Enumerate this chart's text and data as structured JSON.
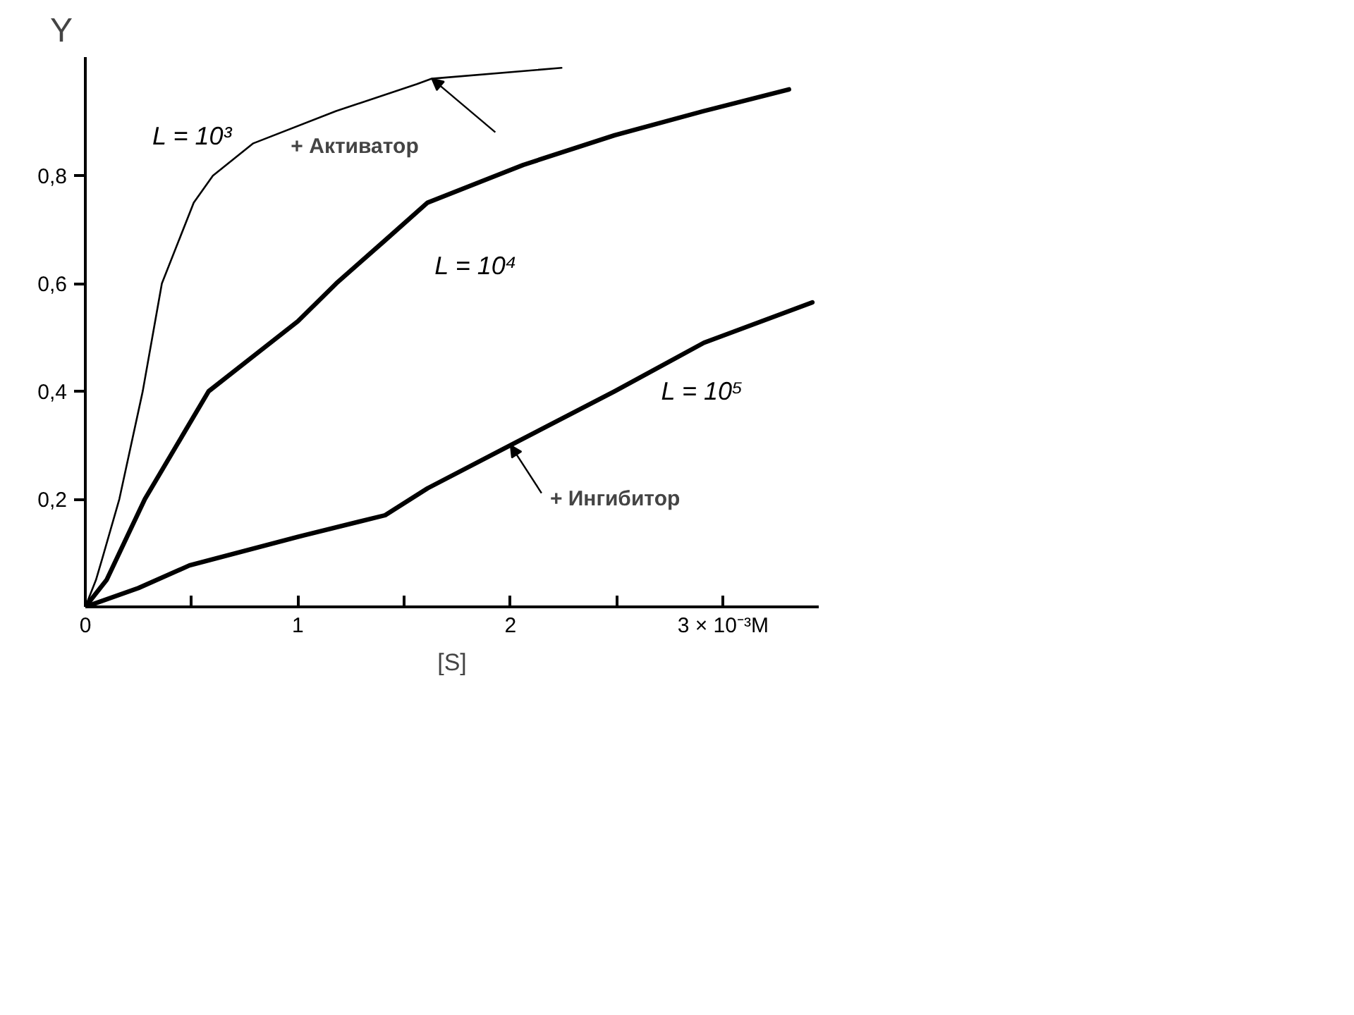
{
  "chart_data": {
    "type": "line",
    "xlabel": "[S]",
    "ylabel": "Y",
    "xlim": [
      0,
      3.45
    ],
    "ylim": [
      0,
      1.02
    ],
    "xticks": [
      {
        "value": 0,
        "label": "0"
      },
      {
        "value": 0.5,
        "label": null
      },
      {
        "value": 1,
        "label": "1"
      },
      {
        "value": 1.5,
        "label": null
      },
      {
        "value": 2,
        "label": "2"
      },
      {
        "value": 2.5,
        "label": null
      },
      {
        "value": 3,
        "label": "3 × 10⁻³M"
      }
    ],
    "yticks": [
      {
        "value": 0.2,
        "label": "0,2"
      },
      {
        "value": 0.4,
        "label": "0,4"
      },
      {
        "value": 0.6,
        "label": "0,6"
      },
      {
        "value": 0.8,
        "label": "0,8"
      }
    ],
    "grid": false,
    "marker": "none",
    "line_style": "solid",
    "series": [
      {
        "name": "L = 10³",
        "color": "#000000",
        "x": [
          0,
          0.05,
          0.08,
          0.16,
          0.27,
          0.36,
          0.51,
          0.6,
          0.79,
          1.18,
          1.56,
          1.63,
          2.24
        ],
        "values": [
          0,
          0.05,
          0.09,
          0.2,
          0.4,
          0.6,
          0.75,
          0.8,
          0.86,
          0.92,
          0.97,
          0.98,
          1.0
        ]
      },
      {
        "name": "L = 10⁴",
        "color": "#000000",
        "x": [
          0,
          0.1,
          0.28,
          0.58,
          1.0,
          1.18,
          1.41,
          1.61,
          2.06,
          2.49,
          2.91,
          3.31
        ],
        "values": [
          0,
          0.05,
          0.2,
          0.4,
          0.53,
          0.6,
          0.68,
          0.75,
          0.82,
          0.875,
          0.92,
          0.96
        ]
      },
      {
        "name": "L = 10⁵",
        "color": "#000000",
        "x": [
          0,
          0.25,
          0.49,
          1.0,
          1.41,
          1.61,
          2.0,
          2.49,
          2.91,
          3.42
        ],
        "values": [
          0,
          0.035,
          0.077,
          0.13,
          0.17,
          0.22,
          0.3,
          0.4,
          0.49,
          0.565
        ]
      }
    ],
    "annotations": [
      {
        "text": "+ Активатор",
        "x": 1.63,
        "y": 0.98
      },
      {
        "text": "+ Ингибитор",
        "x": 2.0,
        "y": 0.3
      }
    ]
  }
}
